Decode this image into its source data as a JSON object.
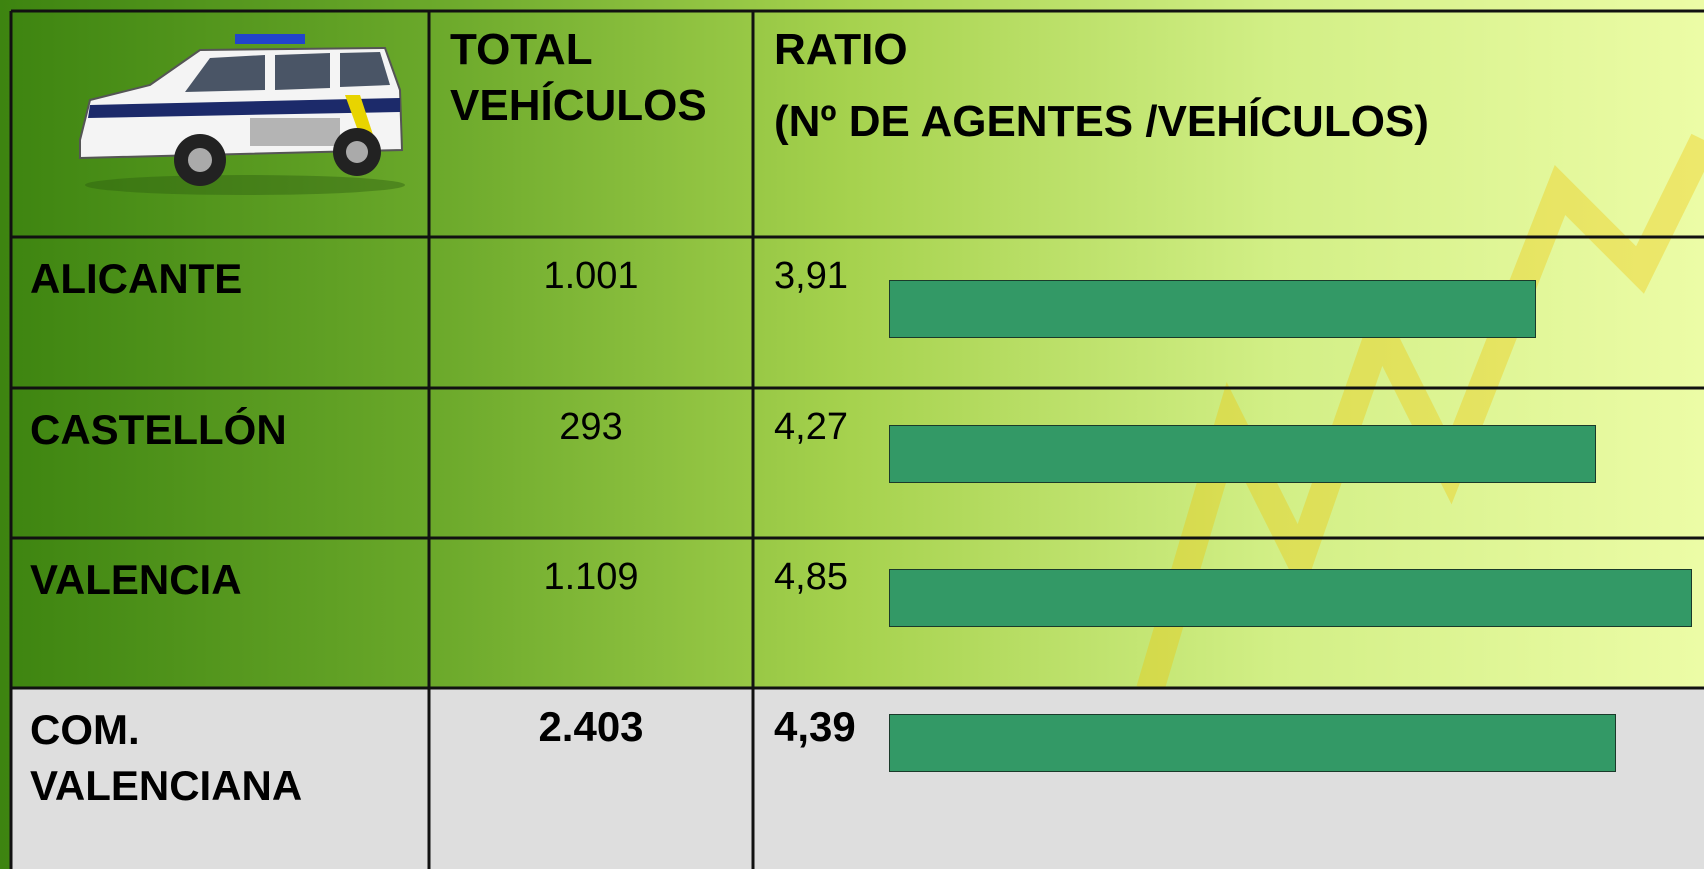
{
  "header": {
    "total": "TOTAL VEHÍCULOS",
    "ratio_title": "RATIO",
    "ratio_subtitle": "(Nº DE AGENTES /VEHÍCULOS)"
  },
  "rows": [
    {
      "name": "ALICANTE",
      "total": "1.001",
      "ratio": 3.91,
      "ratio_label": "3,91"
    },
    {
      "name": "CASTELLÓN",
      "total": "293",
      "ratio": 4.27,
      "ratio_label": "4,27"
    },
    {
      "name": "VALENCIA",
      "total": "1.109",
      "ratio": 4.85,
      "ratio_label": "4,85"
    },
    {
      "name": "COM. VALENCIANA",
      "total": "2.403",
      "ratio": 4.39,
      "ratio_label": "4,39"
    }
  ]
}
